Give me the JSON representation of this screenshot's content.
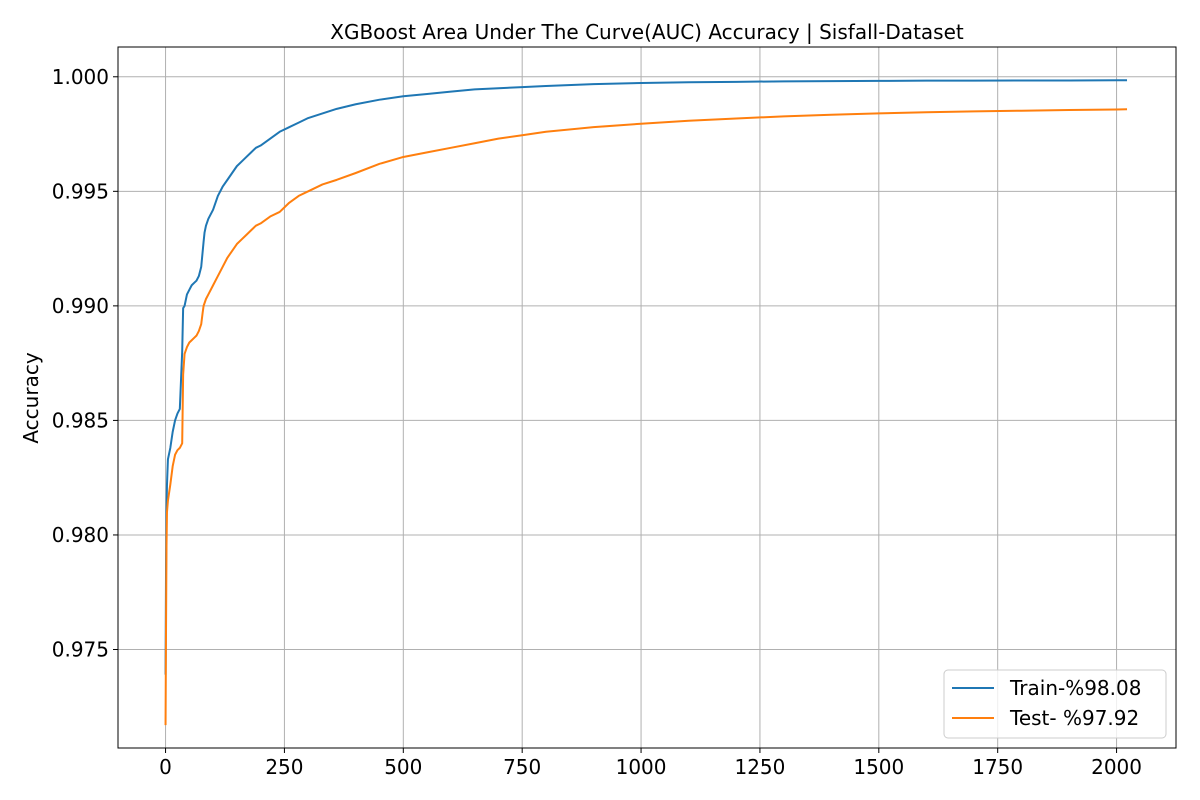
{
  "chart_data": {
    "type": "line",
    "title": "XGBoost Area Under The Curve(AUC) Accuracy | Sisfall-Dataset",
    "xlabel": "",
    "ylabel": "Accuracy",
    "xlim": [
      -100,
      2125
    ],
    "ylim": [
      0.9707,
      1.0013
    ],
    "xticks": [
      0,
      250,
      500,
      750,
      1000,
      1250,
      1500,
      1750,
      2000
    ],
    "xtick_labels": [
      "0",
      "250",
      "500",
      "750",
      "1000",
      "1250",
      "1500",
      "1750",
      "2000"
    ],
    "yticks": [
      0.975,
      0.98,
      0.985,
      0.99,
      0.995,
      1.0
    ],
    "ytick_labels": [
      "0.975",
      "0.980",
      "0.985",
      "0.990",
      "0.995",
      "1.000"
    ],
    "grid": true,
    "legend_position": "lower-right",
    "series": [
      {
        "name": "Train-%98.08",
        "color": "#1f77b4",
        "x": [
          0,
          1,
          2,
          3,
          5,
          10,
          15,
          20,
          25,
          30,
          33,
          35,
          37,
          40,
          45,
          50,
          55,
          60,
          65,
          70,
          75,
          80,
          82,
          85,
          90,
          100,
          110,
          120,
          130,
          140,
          150,
          160,
          170,
          180,
          190,
          200,
          220,
          240,
          260,
          280,
          300,
          330,
          360,
          400,
          450,
          500,
          550,
          600,
          650,
          700,
          750,
          800,
          900,
          1000,
          1100,
          1200,
          1300,
          1400,
          1500,
          1600,
          1700,
          1800,
          1900,
          2000,
          2022
        ],
        "y": [
          0.9739,
          0.9785,
          0.981,
          0.9822,
          0.9833,
          0.9838,
          0.9845,
          0.985,
          0.9853,
          0.9855,
          0.987,
          0.988,
          0.9899,
          0.99,
          0.9905,
          0.9907,
          0.9909,
          0.991,
          0.9911,
          0.9913,
          0.9917,
          0.9928,
          0.9932,
          0.9935,
          0.9938,
          0.9942,
          0.9948,
          0.9952,
          0.9955,
          0.9958,
          0.9961,
          0.9963,
          0.9965,
          0.9967,
          0.9969,
          0.997,
          0.9973,
          0.9976,
          0.9978,
          0.998,
          0.9982,
          0.9984,
          0.9986,
          0.9988,
          0.999,
          0.99915,
          0.99925,
          0.99935,
          0.99945,
          0.9995,
          0.99955,
          0.9996,
          0.99968,
          0.99973,
          0.99976,
          0.99978,
          0.9998,
          0.99981,
          0.99982,
          0.99983,
          0.99983,
          0.99984,
          0.99984,
          0.99985,
          0.99985
        ]
      },
      {
        "name": "Test- %97.92",
        "color": "#ff7f0e",
        "x": [
          0,
          1,
          2,
          3,
          5,
          10,
          15,
          20,
          25,
          30,
          35,
          37,
          40,
          45,
          50,
          55,
          60,
          65,
          70,
          75,
          78,
          80,
          85,
          90,
          100,
          110,
          120,
          130,
          140,
          150,
          160,
          170,
          180,
          190,
          200,
          220,
          240,
          250,
          260,
          280,
          300,
          330,
          360,
          400,
          450,
          500,
          550,
          600,
          650,
          700,
          750,
          800,
          900,
          1000,
          1100,
          1200,
          1300,
          1400,
          1500,
          1600,
          1700,
          1800,
          1900,
          2000,
          2022
        ],
        "y": [
          0.9717,
          0.976,
          0.9795,
          0.981,
          0.9815,
          0.9822,
          0.983,
          0.9835,
          0.9837,
          0.9838,
          0.984,
          0.987,
          0.9879,
          0.9882,
          0.9884,
          0.9885,
          0.9886,
          0.9887,
          0.9889,
          0.9892,
          0.9897,
          0.99,
          0.9903,
          0.9905,
          0.9909,
          0.9913,
          0.9917,
          0.9921,
          0.9924,
          0.9927,
          0.9929,
          0.9931,
          0.9933,
          0.9935,
          0.9936,
          0.9939,
          0.9941,
          0.9943,
          0.9945,
          0.9948,
          0.995,
          0.9953,
          0.9955,
          0.9958,
          0.9962,
          0.9965,
          0.9967,
          0.9969,
          0.9971,
          0.9973,
          0.99745,
          0.9976,
          0.9978,
          0.99795,
          0.99808,
          0.99818,
          0.99827,
          0.99834,
          0.9984,
          0.99845,
          0.99849,
          0.99852,
          0.99855,
          0.99857,
          0.99858
        ]
      }
    ]
  }
}
